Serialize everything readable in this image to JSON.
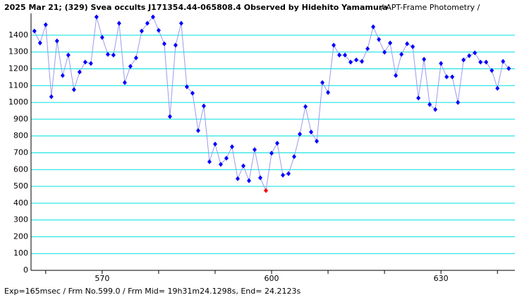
{
  "chart_data": {
    "type": "line",
    "title": "2025 Mar 21; (329) Svea occults J171354.44-065808.4 Observed by Hidehito Yamamura",
    "subtitle": "/ APT-Frame Photometry /",
    "footer": "Exp=165msec / Frm No.599.0 / Frm Mid= 19h31m24.1298s, End= 24.2123s",
    "x": [
      558,
      559,
      560,
      561,
      562,
      563,
      564,
      565,
      566,
      567,
      568,
      569,
      570,
      571,
      572,
      573,
      574,
      575,
      576,
      577,
      578,
      579,
      580,
      581,
      582,
      583,
      584,
      585,
      586,
      587,
      588,
      589,
      590,
      591,
      592,
      593,
      594,
      595,
      596,
      597,
      598,
      599,
      600,
      601,
      602,
      603,
      604,
      605,
      606,
      607,
      608,
      609,
      610,
      611,
      612,
      613,
      614,
      615,
      616,
      617,
      618,
      619,
      620,
      621,
      622,
      623,
      624,
      625,
      626,
      627,
      628,
      629,
      630,
      631,
      632,
      633,
      634,
      635,
      636,
      637,
      638,
      639,
      640,
      641,
      642
    ],
    "series": [
      {
        "color": "#0000ff",
        "line_color": "#9a9aee",
        "values": [
          1425,
          1354,
          1463,
          1034,
          1366,
          1160,
          1282,
          1076,
          1181,
          1240,
          1232,
          1509,
          1387,
          1286,
          1282,
          1471,
          1118,
          1215,
          1265,
          1425,
          1471,
          1509,
          1429,
          1349,
          916,
          1341,
          1471,
          1093,
          1055,
          832,
          979,
          647,
          752,
          631,
          668,
          736,
          546,
          622,
          534,
          719,
          551,
          475,
          698,
          757,
          567,
          576,
          677,
          811,
          975,
          824,
          769,
          1118,
          1059,
          1341,
          1282,
          1282,
          1240,
          1253,
          1244,
          1320,
          1450,
          1375,
          1299,
          1354,
          1160,
          1286,
          1349,
          1332,
          1026,
          1257,
          988,
          958,
          1232,
          1152,
          1152,
          1000,
          1253,
          1278,
          1295,
          1240,
          1240,
          1190,
          1084,
          1244,
          1202
        ]
      }
    ],
    "highlight_x": 599,
    "highlight_color": "#ff0000",
    "xlim": [
      557.4,
      643.1
    ],
    "xticks": [
      570,
      600,
      630
    ],
    "xminor_ticks": [
      560,
      570,
      580,
      590,
      600,
      610,
      620,
      630,
      640
    ],
    "ylim": [
      0,
      1530
    ],
    "yticks": [
      0,
      100,
      200,
      300,
      400,
      500,
      600,
      700,
      800,
      900,
      1000,
      1100,
      1200,
      1300,
      1400
    ],
    "grid": true,
    "grid_color": "#00e0e0"
  }
}
